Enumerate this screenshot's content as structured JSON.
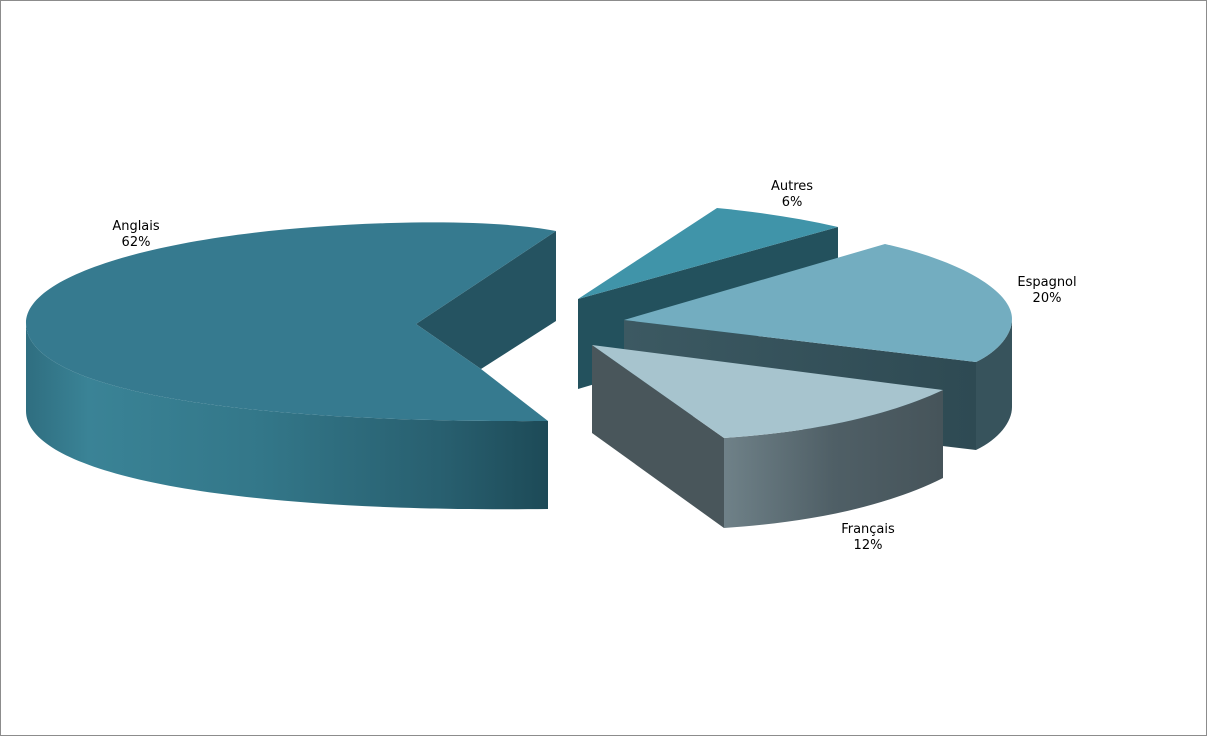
{
  "chart_data": {
    "type": "pie",
    "three_d": true,
    "exploded": true,
    "title": "",
    "legend": "none",
    "slices": [
      {
        "label": "Anglais",
        "value": 62,
        "display": "62%",
        "color": "#367a8f"
      },
      {
        "label": "Autres",
        "value": 6,
        "display": "6%",
        "color": "#4094a9"
      },
      {
        "label": "Espagnol",
        "value": 20,
        "display": "20%",
        "color": "#73adc0"
      },
      {
        "label": "Français",
        "value": 12,
        "display": "12%",
        "color": "#a7c4ce"
      }
    ]
  }
}
